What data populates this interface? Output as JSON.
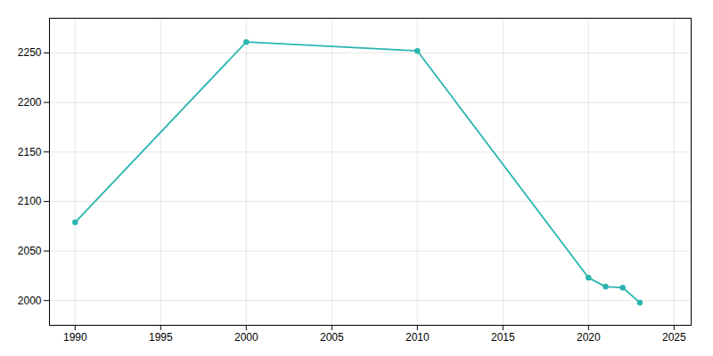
{
  "chart_data": {
    "type": "line",
    "x": [
      1990,
      2000,
      2010,
      2020,
      2021,
      2022,
      2023
    ],
    "values": [
      2079,
      2261,
      2252,
      2023,
      2014,
      2013,
      1998
    ],
    "color": "#2ab5b0",
    "marker": "circle",
    "xlim": [
      1988.5,
      2026
    ],
    "ylim": [
      1975,
      2285
    ],
    "xticks": [
      1990,
      1995,
      2000,
      2005,
      2010,
      2015,
      2020,
      2025
    ],
    "yticks": [
      2000,
      2050,
      2100,
      2150,
      2200,
      2250
    ],
    "grid": true
  }
}
